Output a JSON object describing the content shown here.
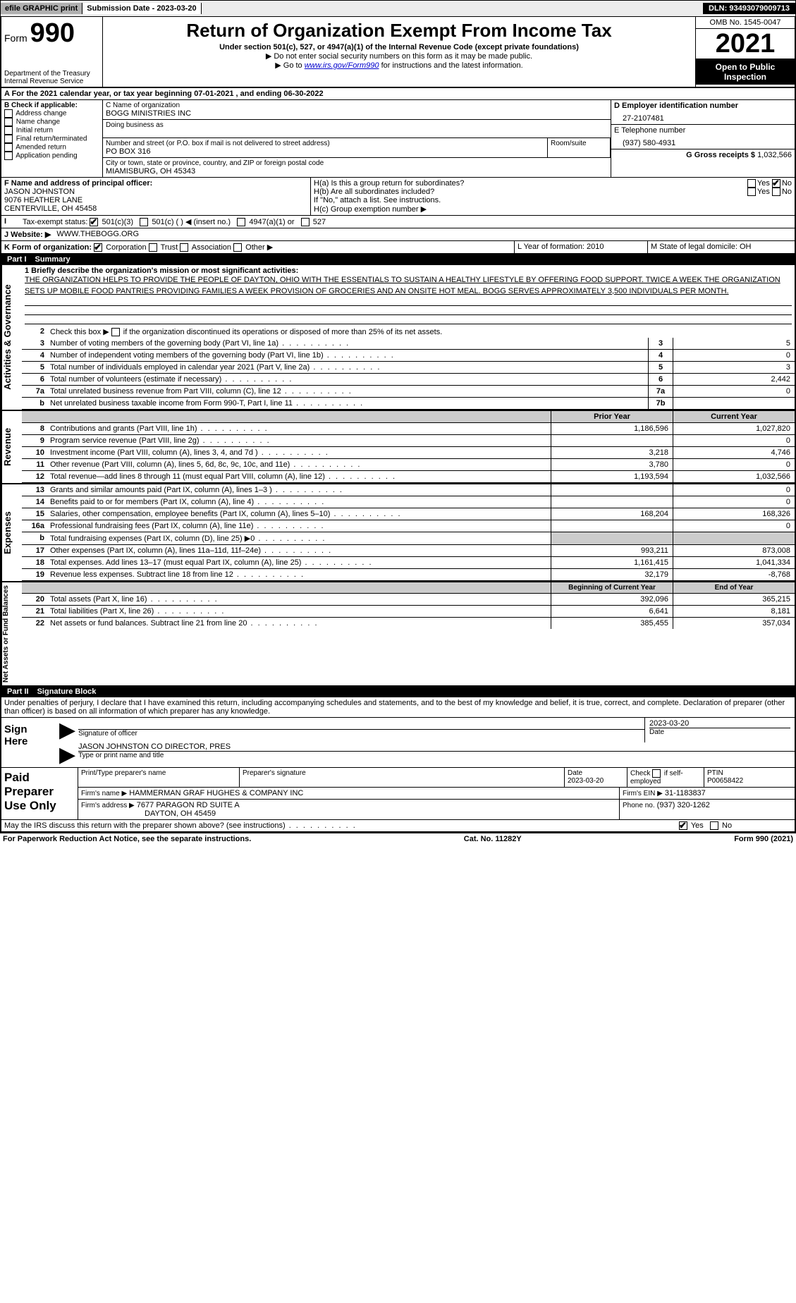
{
  "topbar": {
    "efile": "efile GRAPHIC print",
    "subdate_label": "Submission Date - 2023-03-20",
    "dln": "DLN: 93493079009713"
  },
  "header": {
    "form_label": "Form",
    "form_no": "990",
    "title": "Return of Organization Exempt From Income Tax",
    "subtitle": "Under section 501(c), 527, or 4947(a)(1) of the Internal Revenue Code (except private foundations)",
    "note1": "▶ Do not enter social security numbers on this form as it may be made public.",
    "note2_pre": "▶ Go to ",
    "note2_link": "www.irs.gov/Form990",
    "note2_post": " for instructions and the latest information.",
    "dept": "Department of the Treasury",
    "irs": "Internal Revenue Service",
    "omb": "OMB No. 1545-0047",
    "year": "2021",
    "open": "Open to Public Inspection"
  },
  "periodA": {
    "text": "A For the 2021 calendar year, or tax year beginning 07-01-2021    , and ending 06-30-2022"
  },
  "blockB": {
    "title": "B Check if applicable:",
    "items": [
      "Address change",
      "Name change",
      "Initial return",
      "Final return/terminated",
      "Amended return",
      "Application pending"
    ]
  },
  "blockC": {
    "name_label": "C Name of organization",
    "name": "BOGG MINISTRIES INC",
    "dba_label": "Doing business as",
    "addr_label": "Number and street (or P.O. box if mail is not delivered to street address)",
    "room_label": "Room/suite",
    "addr": "PO BOX 316",
    "city_label": "City or town, state or province, country, and ZIP or foreign postal code",
    "city": "MIAMISBURG, OH  45343"
  },
  "blockD": {
    "ein_label": "D Employer identification number",
    "ein": "27-2107481",
    "tel_label": "E Telephone number",
    "tel": "(937) 580-4931",
    "gross_label": "G Gross receipts $",
    "gross": "1,032,566"
  },
  "blockF": {
    "label": "F Name and address of principal officer:",
    "name": "JASON JOHNSTON",
    "addr1": "9076 HEATHER LANE",
    "addr2": "CENTERVILLE, OH  45458"
  },
  "blockH": {
    "ha_label": "H(a)  Is this a group return for subordinates?",
    "hb_label": "H(b)  Are all subordinates included?",
    "hb_note": "If \"No,\" attach a list. See instructions.",
    "hc_label": "H(c)  Group exemption number ▶",
    "yes": "Yes",
    "no": "No"
  },
  "blockI": {
    "label": "I Tax-exempt status:",
    "opt1": "501(c)(3)",
    "opt2": "501(c) (   ) ◀ (insert no.)",
    "opt3": "4947(a)(1) or",
    "opt4": "527"
  },
  "blockJ": {
    "label": "J Website: ▶",
    "val": "WWW.THEBOGG.ORG"
  },
  "blockK": {
    "label": "K Form of organization:",
    "opts": [
      "Corporation",
      "Trust",
      "Association",
      "Other ▶"
    ]
  },
  "blockL": {
    "label": "L Year of formation: 2010"
  },
  "blockM": {
    "label": "M State of legal domicile: OH"
  },
  "part1": {
    "header_num": "Part I",
    "header_title": "Summary",
    "q1_label": "1 Briefly describe the organization's mission or most significant activities:",
    "mission": "THE ORGANIZATION HELPS TO PROVIDE THE PEOPLE OF DAYTON, OHIO WITH THE ESSENTIALS TO SUSTAIN A HEALTHY LIFESTYLE BY OFFERING FOOD SUPPORT. TWICE A WEEK THE ORGANIZATION SETS UP MOBILE FOOD PANTRIES PROVIDING FAMILIES A WEEK PROVISION OF GROCERIES AND AN ONSITE HOT MEAL. BOGG SERVES APPROXIMATELY 3,500 INDIVIDUALS PER MONTH.",
    "q2": "Check this box ▶      if the organization discontinued its operations or disposed of more than 25% of its net assets.",
    "lines_governance": [
      {
        "n": "3",
        "t": "Number of voting members of the governing body (Part VI, line 1a)",
        "k": "3",
        "v": "5"
      },
      {
        "n": "4",
        "t": "Number of independent voting members of the governing body (Part VI, line 1b)",
        "k": "4",
        "v": "0"
      },
      {
        "n": "5",
        "t": "Total number of individuals employed in calendar year 2021 (Part V, line 2a)",
        "k": "5",
        "v": "3"
      },
      {
        "n": "6",
        "t": "Total number of volunteers (estimate if necessary)",
        "k": "6",
        "v": "2,442"
      },
      {
        "n": "7a",
        "t": "Total unrelated business revenue from Part VIII, column (C), line 12",
        "k": "7a",
        "v": "0"
      },
      {
        "n": "b",
        "t": "Net unrelated business taxable income from Form 990-T, Part I, line 11",
        "k": "7b",
        "v": ""
      }
    ],
    "col_prior": "Prior Year",
    "col_current": "Current Year",
    "lines_revenue": [
      {
        "n": "8",
        "t": "Contributions and grants (Part VIII, line 1h)",
        "p": "1,186,596",
        "c": "1,027,820"
      },
      {
        "n": "9",
        "t": "Program service revenue (Part VIII, line 2g)",
        "p": "",
        "c": "0"
      },
      {
        "n": "10",
        "t": "Investment income (Part VIII, column (A), lines 3, 4, and 7d )",
        "p": "3,218",
        "c": "4,746"
      },
      {
        "n": "11",
        "t": "Other revenue (Part VIII, column (A), lines 5, 6d, 8c, 9c, 10c, and 11e)",
        "p": "3,780",
        "c": "0"
      },
      {
        "n": "12",
        "t": "Total revenue—add lines 8 through 11 (must equal Part VIII, column (A), line 12)",
        "p": "1,193,594",
        "c": "1,032,566"
      }
    ],
    "lines_expenses": [
      {
        "n": "13",
        "t": "Grants and similar amounts paid (Part IX, column (A), lines 1–3 )",
        "p": "",
        "c": "0"
      },
      {
        "n": "14",
        "t": "Benefits paid to or for members (Part IX, column (A), line 4)",
        "p": "",
        "c": "0"
      },
      {
        "n": "15",
        "t": "Salaries, other compensation, employee benefits (Part IX, column (A), lines 5–10)",
        "p": "168,204",
        "c": "168,326"
      },
      {
        "n": "16a",
        "t": "Professional fundraising fees (Part IX, column (A), line 11e)",
        "p": "",
        "c": "0"
      },
      {
        "n": "b",
        "t": "Total fundraising expenses (Part IX, column (D), line 25) ▶0",
        "p": null,
        "c": null
      },
      {
        "n": "17",
        "t": "Other expenses (Part IX, column (A), lines 11a–11d, 11f–24e)",
        "p": "993,211",
        "c": "873,008"
      },
      {
        "n": "18",
        "t": "Total expenses. Add lines 13–17 (must equal Part IX, column (A), line 25)",
        "p": "1,161,415",
        "c": "1,041,334"
      },
      {
        "n": "19",
        "t": "Revenue less expenses. Subtract line 18 from line 12",
        "p": "32,179",
        "c": "-8,768"
      }
    ],
    "col_begin": "Beginning of Current Year",
    "col_end": "End of Year",
    "lines_net": [
      {
        "n": "20",
        "t": "Total assets (Part X, line 16)",
        "p": "392,096",
        "c": "365,215"
      },
      {
        "n": "21",
        "t": "Total liabilities (Part X, line 26)",
        "p": "6,641",
        "c": "8,181"
      },
      {
        "n": "22",
        "t": "Net assets or fund balances. Subtract line 21 from line 20",
        "p": "385,455",
        "c": "357,034"
      }
    ],
    "vtab_gov": "Activities & Governance",
    "vtab_rev": "Revenue",
    "vtab_exp": "Expenses",
    "vtab_net": "Net Assets or Fund Balances"
  },
  "part2": {
    "header_num": "Part II",
    "header_title": "Signature Block",
    "decl": "Under penalties of perjury, I declare that I have examined this return, including accompanying schedules and statements, and to the best of my knowledge and belief, it is true, correct, and complete. Declaration of preparer (other than officer) is based on all information of which preparer has any knowledge.",
    "sign_here": "Sign Here",
    "sig_officer": "Signature of officer",
    "sig_date": "2023-03-20",
    "sig_date_label": "Date",
    "sig_name": "JASON JOHNSTON  CO DIRECTOR, PRES",
    "sig_name_label": "Type or print name and title",
    "paid": "Paid Preparer Use Only",
    "prep_name_label": "Print/Type preparer's name",
    "prep_sig_label": "Preparer's signature",
    "prep_date_label": "Date",
    "prep_date": "2023-03-20",
    "check_self": "Check        if self-employed",
    "ptin_label": "PTIN",
    "ptin": "P00658422",
    "firm_name_label": "Firm's name   ▶",
    "firm_name": "HAMMERMAN GRAF HUGHES & COMPANY INC",
    "firm_ein_label": "Firm's EIN ▶",
    "firm_ein": "31-1183837",
    "firm_addr_label": "Firm's address ▶",
    "firm_addr1": "7677 PARAGON RD SUITE A",
    "firm_addr2": "DAYTON, OH  45459",
    "phone_label": "Phone no.",
    "phone": "(937) 320-1262",
    "may_irs": "May the IRS discuss this return with the preparer shown above? (see instructions)",
    "yes": "Yes",
    "no": "No"
  },
  "footer": {
    "left": "For Paperwork Reduction Act Notice, see the separate instructions.",
    "mid": "Cat. No. 11282Y",
    "right": "Form 990 (2021)"
  }
}
